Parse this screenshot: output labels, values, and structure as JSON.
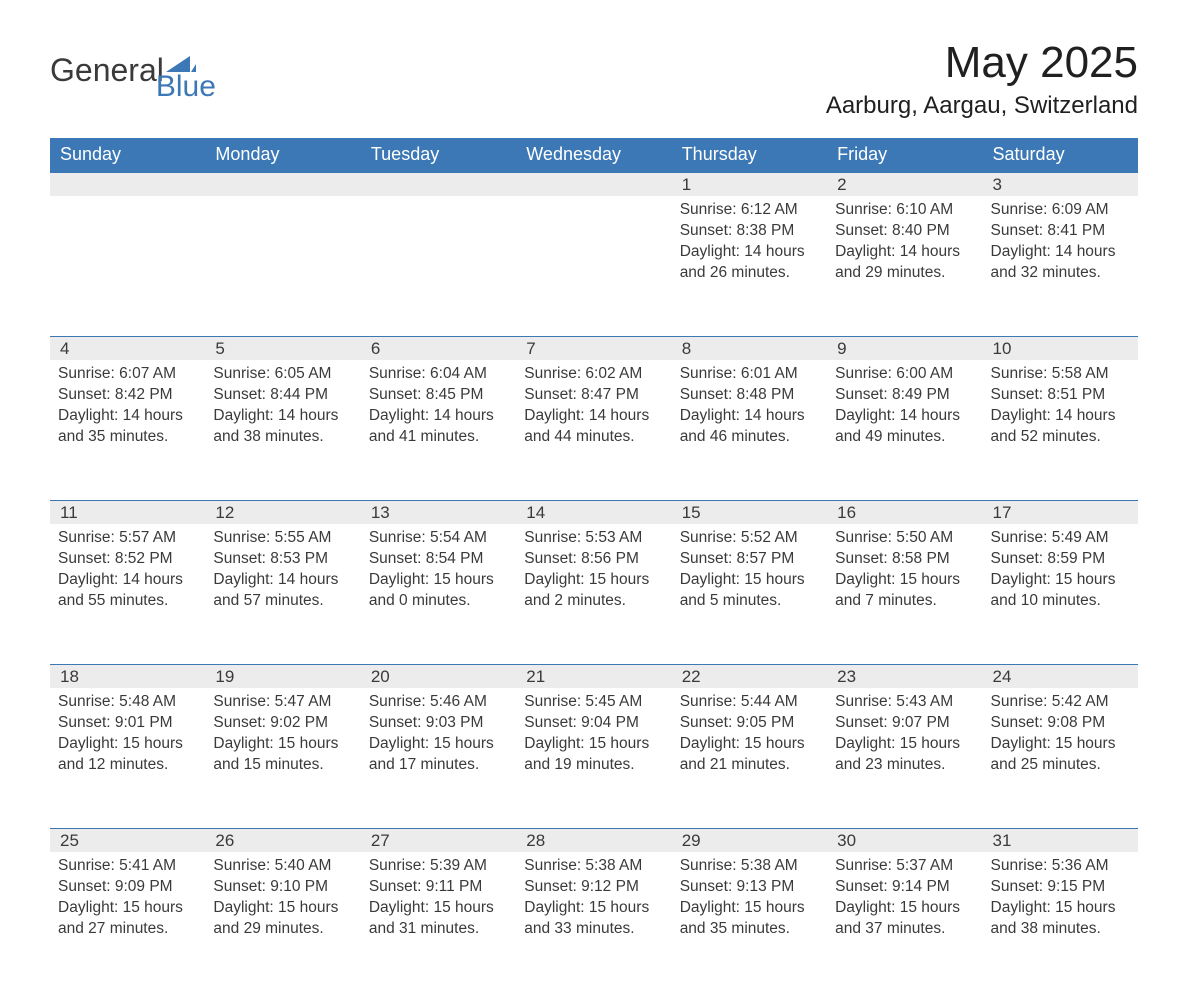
{
  "logo": {
    "word1": "General",
    "word2": "Blue",
    "accent_color": "#3b78b5"
  },
  "title": "May 2025",
  "location": "Aarburg, Aargau, Switzerland",
  "header_bg": "#3b78b5",
  "header_text_color": "#ffffff",
  "daynum_bg": "#ececec",
  "daynum_border": "#3b78b5",
  "text_color": "#3a3a3a",
  "background_color": "#ffffff",
  "columns": [
    "Sunday",
    "Monday",
    "Tuesday",
    "Wednesday",
    "Thursday",
    "Friday",
    "Saturday"
  ],
  "weeks": [
    [
      null,
      null,
      null,
      null,
      {
        "n": "1",
        "sunrise": "6:12 AM",
        "sunset": "8:38 PM",
        "daylight": "14 hours and 26 minutes."
      },
      {
        "n": "2",
        "sunrise": "6:10 AM",
        "sunset": "8:40 PM",
        "daylight": "14 hours and 29 minutes."
      },
      {
        "n": "3",
        "sunrise": "6:09 AM",
        "sunset": "8:41 PM",
        "daylight": "14 hours and 32 minutes."
      }
    ],
    [
      {
        "n": "4",
        "sunrise": "6:07 AM",
        "sunset": "8:42 PM",
        "daylight": "14 hours and 35 minutes."
      },
      {
        "n": "5",
        "sunrise": "6:05 AM",
        "sunset": "8:44 PM",
        "daylight": "14 hours and 38 minutes."
      },
      {
        "n": "6",
        "sunrise": "6:04 AM",
        "sunset": "8:45 PM",
        "daylight": "14 hours and 41 minutes."
      },
      {
        "n": "7",
        "sunrise": "6:02 AM",
        "sunset": "8:47 PM",
        "daylight": "14 hours and 44 minutes."
      },
      {
        "n": "8",
        "sunrise": "6:01 AM",
        "sunset": "8:48 PM",
        "daylight": "14 hours and 46 minutes."
      },
      {
        "n": "9",
        "sunrise": "6:00 AM",
        "sunset": "8:49 PM",
        "daylight": "14 hours and 49 minutes."
      },
      {
        "n": "10",
        "sunrise": "5:58 AM",
        "sunset": "8:51 PM",
        "daylight": "14 hours and 52 minutes."
      }
    ],
    [
      {
        "n": "11",
        "sunrise": "5:57 AM",
        "sunset": "8:52 PM",
        "daylight": "14 hours and 55 minutes."
      },
      {
        "n": "12",
        "sunrise": "5:55 AM",
        "sunset": "8:53 PM",
        "daylight": "14 hours and 57 minutes."
      },
      {
        "n": "13",
        "sunrise": "5:54 AM",
        "sunset": "8:54 PM",
        "daylight": "15 hours and 0 minutes."
      },
      {
        "n": "14",
        "sunrise": "5:53 AM",
        "sunset": "8:56 PM",
        "daylight": "15 hours and 2 minutes."
      },
      {
        "n": "15",
        "sunrise": "5:52 AM",
        "sunset": "8:57 PM",
        "daylight": "15 hours and 5 minutes."
      },
      {
        "n": "16",
        "sunrise": "5:50 AM",
        "sunset": "8:58 PM",
        "daylight": "15 hours and 7 minutes."
      },
      {
        "n": "17",
        "sunrise": "5:49 AM",
        "sunset": "8:59 PM",
        "daylight": "15 hours and 10 minutes."
      }
    ],
    [
      {
        "n": "18",
        "sunrise": "5:48 AM",
        "sunset": "9:01 PM",
        "daylight": "15 hours and 12 minutes."
      },
      {
        "n": "19",
        "sunrise": "5:47 AM",
        "sunset": "9:02 PM",
        "daylight": "15 hours and 15 minutes."
      },
      {
        "n": "20",
        "sunrise": "5:46 AM",
        "sunset": "9:03 PM",
        "daylight": "15 hours and 17 minutes."
      },
      {
        "n": "21",
        "sunrise": "5:45 AM",
        "sunset": "9:04 PM",
        "daylight": "15 hours and 19 minutes."
      },
      {
        "n": "22",
        "sunrise": "5:44 AM",
        "sunset": "9:05 PM",
        "daylight": "15 hours and 21 minutes."
      },
      {
        "n": "23",
        "sunrise": "5:43 AM",
        "sunset": "9:07 PM",
        "daylight": "15 hours and 23 minutes."
      },
      {
        "n": "24",
        "sunrise": "5:42 AM",
        "sunset": "9:08 PM",
        "daylight": "15 hours and 25 minutes."
      }
    ],
    [
      {
        "n": "25",
        "sunrise": "5:41 AM",
        "sunset": "9:09 PM",
        "daylight": "15 hours and 27 minutes."
      },
      {
        "n": "26",
        "sunrise": "5:40 AM",
        "sunset": "9:10 PM",
        "daylight": "15 hours and 29 minutes."
      },
      {
        "n": "27",
        "sunrise": "5:39 AM",
        "sunset": "9:11 PM",
        "daylight": "15 hours and 31 minutes."
      },
      {
        "n": "28",
        "sunrise": "5:38 AM",
        "sunset": "9:12 PM",
        "daylight": "15 hours and 33 minutes."
      },
      {
        "n": "29",
        "sunrise": "5:38 AM",
        "sunset": "9:13 PM",
        "daylight": "15 hours and 35 minutes."
      },
      {
        "n": "30",
        "sunrise": "5:37 AM",
        "sunset": "9:14 PM",
        "daylight": "15 hours and 37 minutes."
      },
      {
        "n": "31",
        "sunrise": "5:36 AM",
        "sunset": "9:15 PM",
        "daylight": "15 hours and 38 minutes."
      }
    ]
  ],
  "labels": {
    "sunrise_prefix": "Sunrise: ",
    "sunset_prefix": "Sunset: ",
    "daylight_prefix": "Daylight: "
  }
}
